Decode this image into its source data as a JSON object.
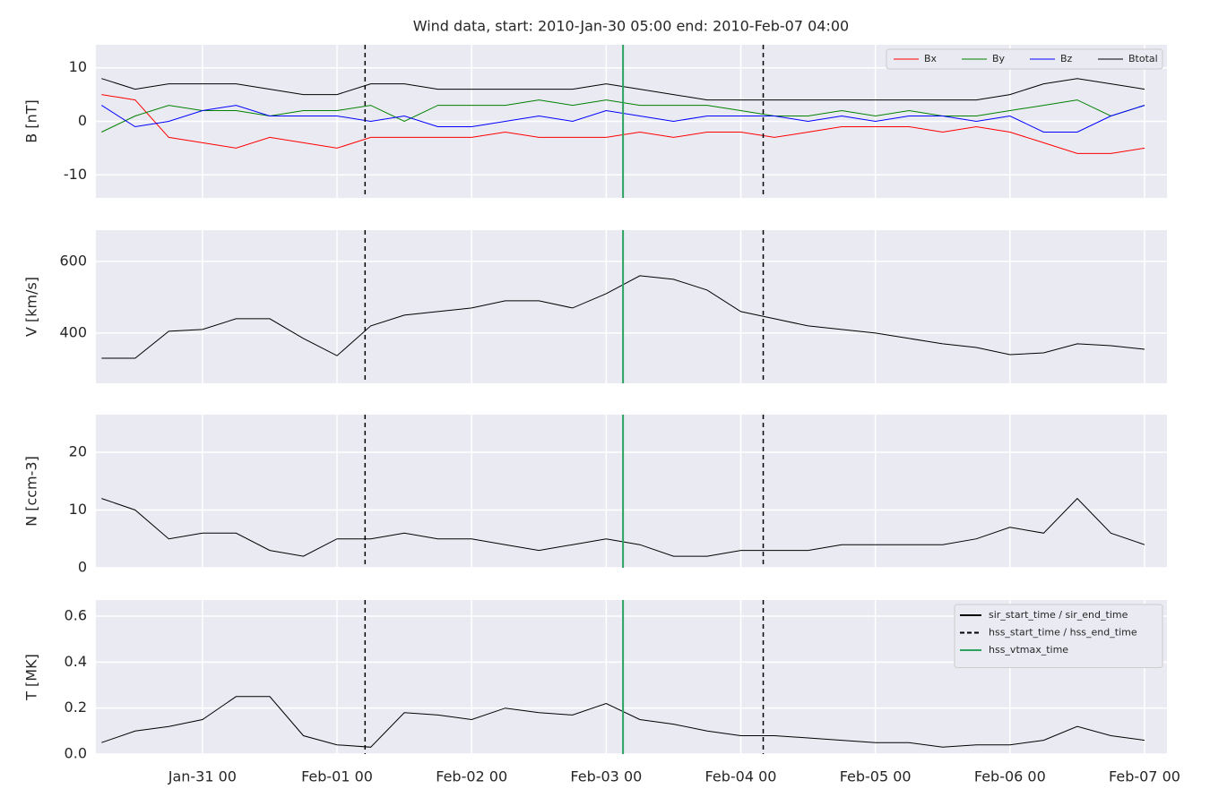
{
  "chart_data": [
    {
      "type": "line",
      "title": "Wind data, start: 2010-Jan-30 05:00  end: 2010-Feb-07 04:00",
      "ylabel": "B [nT]",
      "x": [
        "Jan-30 06",
        "Jan-30 12",
        "Jan-30 18",
        "Jan-31 00",
        "Jan-31 06",
        "Jan-31 12",
        "Jan-31 18",
        "Feb-01 00",
        "Feb-01 06",
        "Feb-01 12",
        "Feb-01 18",
        "Feb-02 00",
        "Feb-02 06",
        "Feb-02 12",
        "Feb-02 18",
        "Feb-03 00",
        "Feb-03 06",
        "Feb-03 12",
        "Feb-03 18",
        "Feb-04 00",
        "Feb-04 06",
        "Feb-04 12",
        "Feb-04 18",
        "Feb-05 00",
        "Feb-05 06",
        "Feb-05 12",
        "Feb-05 18",
        "Feb-06 00",
        "Feb-06 06",
        "Feb-06 12",
        "Feb-06 18",
        "Feb-07 00"
      ],
      "xlim": [
        "Jan-30 05",
        "Feb-07 04"
      ],
      "xticks": [
        "Jan-31 00",
        "Feb-01 00",
        "Feb-02 00",
        "Feb-03 00",
        "Feb-04 00",
        "Feb-05 00",
        "Feb-06 00",
        "Feb-07 00"
      ],
      "ylim": [
        -14.3,
        14.3
      ],
      "yticks": [
        -10,
        0,
        10
      ],
      "grid": true,
      "legend": "upper right",
      "series": [
        {
          "name": "Bx",
          "color": "#ff0000",
          "values": [
            5,
            4,
            -3,
            -4,
            -5,
            -3,
            -4,
            -5,
            -3,
            -3,
            -3,
            -3,
            -2,
            -3,
            -3,
            -3,
            -2,
            -3,
            -2,
            -2,
            -3,
            -2,
            -1,
            -1,
            -1,
            -2,
            -1,
            -2,
            -4,
            -6,
            -6,
            -5
          ]
        },
        {
          "name": "By",
          "color": "#008000",
          "values": [
            -2,
            1,
            3,
            2,
            2,
            1,
            2,
            2,
            3,
            0,
            3,
            3,
            3,
            4,
            3,
            4,
            3,
            3,
            3,
            2,
            1,
            1,
            2,
            1,
            2,
            1,
            1,
            2,
            3,
            4,
            1,
            3
          ]
        },
        {
          "name": "Bz",
          "color": "#0000ff",
          "values": [
            3,
            -1,
            0,
            2,
            3,
            1,
            1,
            1,
            0,
            1,
            -1,
            -1,
            0,
            1,
            0,
            2,
            1,
            0,
            1,
            1,
            1,
            0,
            1,
            0,
            1,
            1,
            0,
            1,
            -2,
            -2,
            1,
            3
          ]
        },
        {
          "name": "Btotal",
          "color": "#000000",
          "values": [
            8,
            6,
            7,
            7,
            7,
            6,
            5,
            5,
            7,
            7,
            6,
            6,
            6,
            6,
            6,
            7,
            6,
            5,
            4,
            4,
            4,
            4,
            4,
            4,
            4,
            4,
            4,
            5,
            7,
            8,
            7,
            6
          ]
        }
      ]
    },
    {
      "type": "line",
      "ylabel": "V [km/s]",
      "x": [
        "Jan-30 06",
        "Jan-30 12",
        "Jan-30 18",
        "Jan-31 00",
        "Jan-31 06",
        "Jan-31 12",
        "Jan-31 18",
        "Feb-01 00",
        "Feb-01 06",
        "Feb-01 12",
        "Feb-01 18",
        "Feb-02 00",
        "Feb-02 06",
        "Feb-02 12",
        "Feb-02 18",
        "Feb-03 00",
        "Feb-03 06",
        "Feb-03 12",
        "Feb-03 18",
        "Feb-04 00",
        "Feb-04 06",
        "Feb-04 12",
        "Feb-04 18",
        "Feb-05 00",
        "Feb-05 06",
        "Feb-05 12",
        "Feb-05 18",
        "Feb-06 00",
        "Feb-06 06",
        "Feb-06 12",
        "Feb-06 18",
        "Feb-07 00"
      ],
      "xlim": [
        "Jan-30 05",
        "Feb-07 04"
      ],
      "xticks": [
        "Jan-31 00",
        "Feb-01 00",
        "Feb-02 00",
        "Feb-03 00",
        "Feb-04 00",
        "Feb-05 00",
        "Feb-06 00",
        "Feb-07 00"
      ],
      "ylim": [
        260,
        687
      ],
      "yticks": [
        400,
        600
      ],
      "grid": true,
      "color": "#000000",
      "values": [
        330,
        330,
        405,
        410,
        440,
        440,
        385,
        337,
        420,
        450,
        460,
        470,
        490,
        490,
        470,
        510,
        560,
        550,
        520,
        460,
        440,
        420,
        410,
        400,
        385,
        370,
        360,
        340,
        345,
        370,
        365,
        355
      ]
    },
    {
      "type": "line",
      "ylabel": "N [ccm-3]",
      "x": [
        "Jan-30 06",
        "Jan-30 12",
        "Jan-30 18",
        "Jan-31 00",
        "Jan-31 06",
        "Jan-31 12",
        "Jan-31 18",
        "Feb-01 00",
        "Feb-01 06",
        "Feb-01 12",
        "Feb-01 18",
        "Feb-02 00",
        "Feb-02 06",
        "Feb-02 12",
        "Feb-02 18",
        "Feb-03 00",
        "Feb-03 06",
        "Feb-03 12",
        "Feb-03 18",
        "Feb-04 00",
        "Feb-04 06",
        "Feb-04 12",
        "Feb-04 18",
        "Feb-05 00",
        "Feb-05 06",
        "Feb-05 12",
        "Feb-05 18",
        "Feb-06 00",
        "Feb-06 06",
        "Feb-06 12",
        "Feb-06 18",
        "Feb-07 00"
      ],
      "xlim": [
        "Jan-30 05",
        "Feb-07 04"
      ],
      "xticks": [
        "Jan-31 00",
        "Feb-01 00",
        "Feb-02 00",
        "Feb-03 00",
        "Feb-04 00",
        "Feb-05 00",
        "Feb-06 00",
        "Feb-07 00"
      ],
      "ylim": [
        0,
        26.5
      ],
      "yticks": [
        0,
        10,
        20
      ],
      "grid": true,
      "color": "#000000",
      "values": [
        12,
        10,
        5,
        6,
        6,
        3,
        2,
        5,
        5,
        6,
        5,
        5,
        4,
        3,
        4,
        5,
        4,
        2,
        2,
        3,
        3,
        3,
        4,
        4,
        4,
        4,
        5,
        7,
        6,
        12,
        6,
        4
      ]
    },
    {
      "type": "line",
      "ylabel": "T [MK]",
      "x": [
        "Jan-30 06",
        "Jan-30 12",
        "Jan-30 18",
        "Jan-31 00",
        "Jan-31 06",
        "Jan-31 12",
        "Jan-31 18",
        "Feb-01 00",
        "Feb-01 06",
        "Feb-01 12",
        "Feb-01 18",
        "Feb-02 00",
        "Feb-02 06",
        "Feb-02 12",
        "Feb-02 18",
        "Feb-03 00",
        "Feb-03 06",
        "Feb-03 12",
        "Feb-03 18",
        "Feb-04 00",
        "Feb-04 06",
        "Feb-04 12",
        "Feb-04 18",
        "Feb-05 00",
        "Feb-05 06",
        "Feb-05 12",
        "Feb-05 18",
        "Feb-06 00",
        "Feb-06 06",
        "Feb-06 12",
        "Feb-06 18",
        "Feb-07 00"
      ],
      "xlim": [
        "Jan-30 05",
        "Feb-07 04"
      ],
      "xticks": [
        "Jan-31 00",
        "Feb-01 00",
        "Feb-02 00",
        "Feb-03 00",
        "Feb-04 00",
        "Feb-05 00",
        "Feb-06 00",
        "Feb-07 00"
      ],
      "ylim": [
        0,
        0.67
      ],
      "yticks": [
        {
          "value": 0,
          "label": "0.0"
        },
        {
          "value": 0.2,
          "label": "0.2"
        },
        {
          "value": 0.4,
          "label": "0.4"
        },
        {
          "value": 0.6,
          "label": "0.6"
        }
      ],
      "grid": true,
      "color": "#000000",
      "values": [
        0.05,
        0.1,
        0.12,
        0.15,
        0.25,
        0.25,
        0.08,
        0.04,
        0.03,
        0.18,
        0.17,
        0.15,
        0.2,
        0.18,
        0.17,
        0.22,
        0.15,
        0.13,
        0.1,
        0.08,
        0.08,
        0.07,
        0.06,
        0.05,
        0.05,
        0.03,
        0.04,
        0.04,
        0.06,
        0.12,
        0.08,
        0.06
      ],
      "legend": "upper right",
      "events": [
        {
          "name": "sir_start_time / sir_end_time",
          "style": "solid",
          "color": "#000000",
          "times": []
        },
        {
          "name": "hss_start_time / hss_end_time",
          "style": "dashed",
          "color": "#000000",
          "times": [
            "Feb-01 05",
            "Feb-04 04"
          ]
        },
        {
          "name": "hss_vtmax_time",
          "style": "solid",
          "color": "#2ca25f",
          "times": [
            "Feb-03 03"
          ]
        }
      ]
    }
  ]
}
